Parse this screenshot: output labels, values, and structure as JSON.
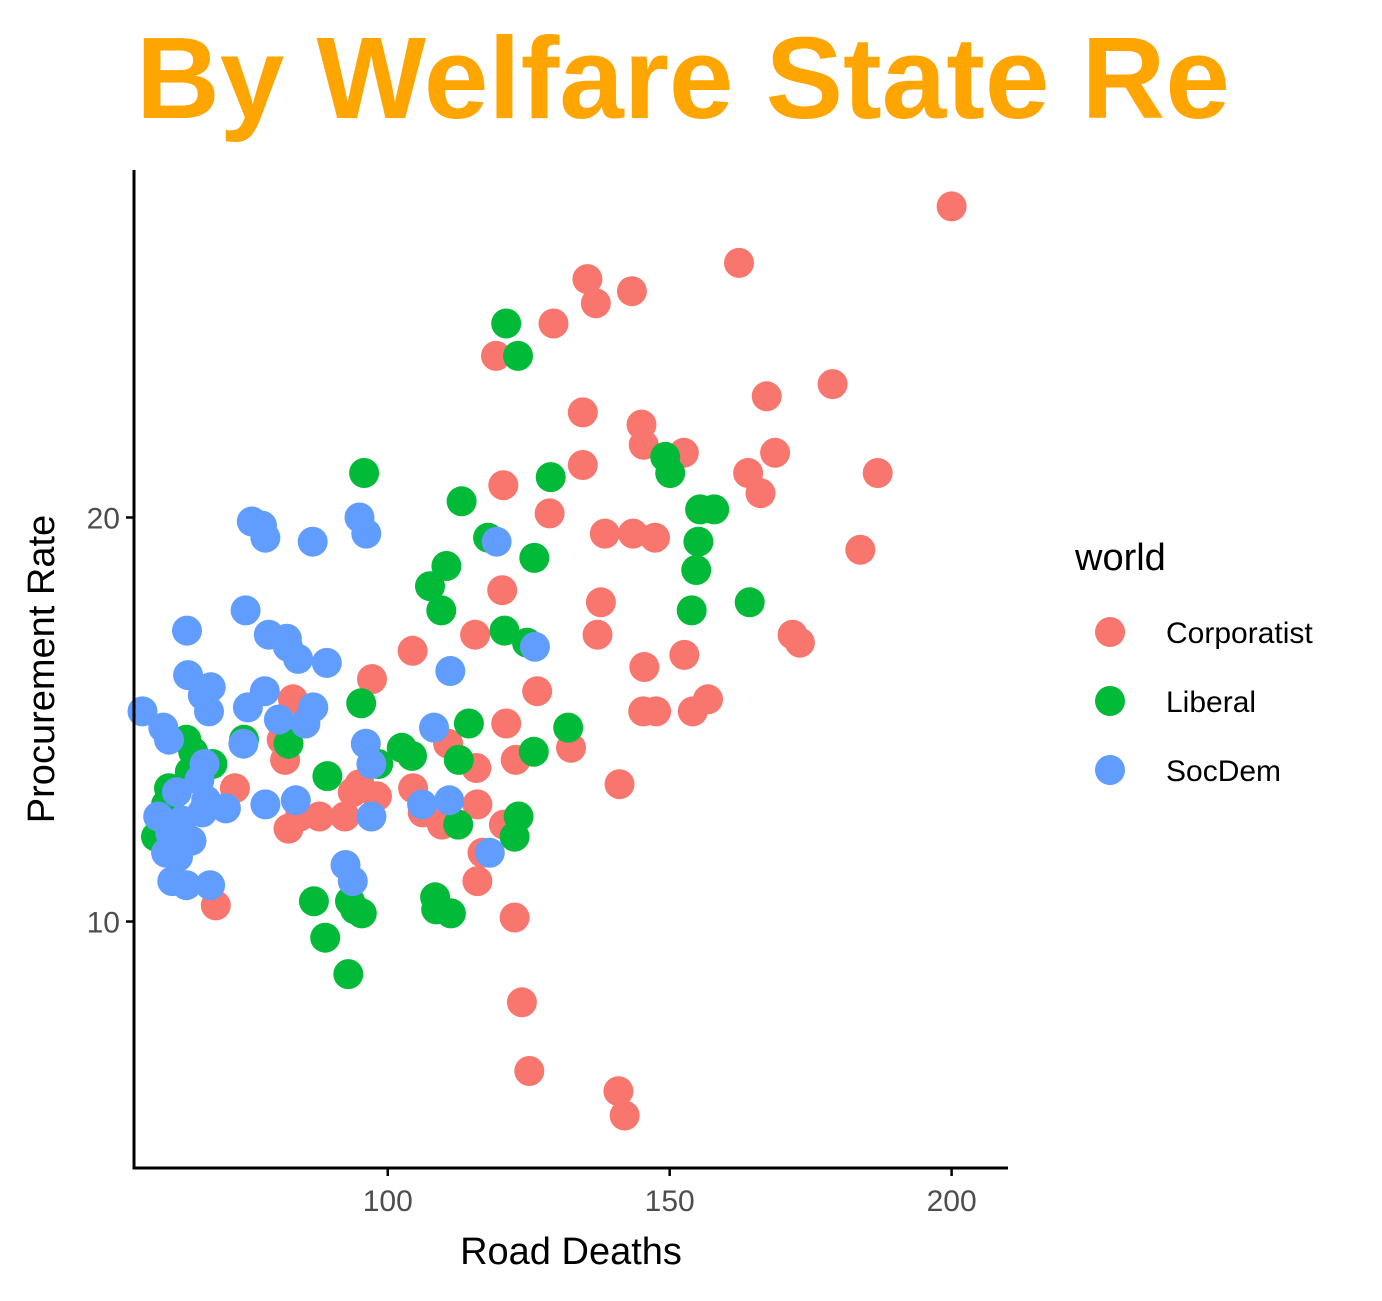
{
  "chart_data": {
    "type": "scatter",
    "title": "By Welfare State Re",
    "xlabel": "Road Deaths",
    "ylabel": "Procurement Rate",
    "xlim": [
      55,
      210
    ],
    "ylim": [
      3.9,
      28.6
    ],
    "x_ticks": [
      100,
      150,
      200
    ],
    "y_ticks": [
      10,
      20
    ],
    "grid": false,
    "legend": {
      "title": "world",
      "position": "right"
    },
    "colors": {
      "title": "#FFA500",
      "axis": "#000000",
      "tick_label": "#4D4D4D"
    },
    "series": [
      {
        "name": "Corporatist",
        "color": "#F8766D",
        "points": [
          [
            200.0,
            27.7
          ],
          [
            162.3,
            26.3
          ],
          [
            135.4,
            25.9
          ],
          [
            143.3,
            25.6
          ],
          [
            136.9,
            25.3
          ],
          [
            129.4,
            24.8
          ],
          [
            119.2,
            24.0
          ],
          [
            178.9,
            23.3
          ],
          [
            167.2,
            23.0
          ],
          [
            134.6,
            22.6
          ],
          [
            145.0,
            22.3
          ],
          [
            145.4,
            21.8
          ],
          [
            152.5,
            21.6
          ],
          [
            168.7,
            21.6
          ],
          [
            134.6,
            21.3
          ],
          [
            163.9,
            21.1
          ],
          [
            186.9,
            21.1
          ],
          [
            120.5,
            20.8
          ],
          [
            166.1,
            20.6
          ],
          [
            128.7,
            20.1
          ],
          [
            138.5,
            19.6
          ],
          [
            143.5,
            19.6
          ],
          [
            147.4,
            19.5
          ],
          [
            183.8,
            19.2
          ],
          [
            120.3,
            18.2
          ],
          [
            137.8,
            17.9
          ],
          [
            115.5,
            17.1
          ],
          [
            137.2,
            17.1
          ],
          [
            171.8,
            17.1
          ],
          [
            173.1,
            16.9
          ],
          [
            104.4,
            16.7
          ],
          [
            152.6,
            16.6
          ],
          [
            145.5,
            16.3
          ],
          [
            97.2,
            16.0
          ],
          [
            126.5,
            15.7
          ],
          [
            156.8,
            15.5
          ],
          [
            83.2,
            15.5
          ],
          [
            147.6,
            15.2
          ],
          [
            145.3,
            15.2
          ],
          [
            154.1,
            15.2
          ],
          [
            121.0,
            14.9
          ],
          [
            81.2,
            14.5
          ],
          [
            110.7,
            14.4
          ],
          [
            81.8,
            14.0
          ],
          [
            122.7,
            14.0
          ],
          [
            132.5,
            14.3
          ],
          [
            115.7,
            13.8
          ],
          [
            95.0,
            13.4
          ],
          [
            72.9,
            13.3
          ],
          [
            104.5,
            13.3
          ],
          [
            93.8,
            13.2
          ],
          [
            98.1,
            13.1
          ],
          [
            141.1,
            13.4
          ],
          [
            115.9,
            12.9
          ],
          [
            87.9,
            12.6
          ],
          [
            92.4,
            12.6
          ],
          [
            106.2,
            12.7
          ],
          [
            84.4,
            12.6
          ],
          [
            109.6,
            12.4
          ],
          [
            120.6,
            12.4
          ],
          [
            82.4,
            12.3
          ],
          [
            116.8,
            11.7
          ],
          [
            115.9,
            11.0
          ],
          [
            69.5,
            10.4
          ],
          [
            122.5,
            10.1
          ],
          [
            123.8,
            8.0
          ],
          [
            125.1,
            6.3
          ],
          [
            140.9,
            5.8
          ],
          [
            142.0,
            5.2
          ]
        ]
      },
      {
        "name": "Liberal",
        "color": "#00BA38",
        "points": [
          [
            121.0,
            24.8
          ],
          [
            123.1,
            24.0
          ],
          [
            95.8,
            21.1
          ],
          [
            113.1,
            20.4
          ],
          [
            128.9,
            21.0
          ],
          [
            149.2,
            21.5
          ],
          [
            150.1,
            21.1
          ],
          [
            155.4,
            20.2
          ],
          [
            157.9,
            20.2
          ],
          [
            117.8,
            19.5
          ],
          [
            155.1,
            19.4
          ],
          [
            126.0,
            19.0
          ],
          [
            110.4,
            18.8
          ],
          [
            154.7,
            18.7
          ],
          [
            107.5,
            18.3
          ],
          [
            109.5,
            17.7
          ],
          [
            153.9,
            17.7
          ],
          [
            164.2,
            17.9
          ],
          [
            120.7,
            17.2
          ],
          [
            124.7,
            16.9
          ],
          [
            95.3,
            15.4
          ],
          [
            64.3,
            14.5
          ],
          [
            74.5,
            14.5
          ],
          [
            82.4,
            14.4
          ],
          [
            114.4,
            14.9
          ],
          [
            132.0,
            14.8
          ],
          [
            65.5,
            14.2
          ],
          [
            68.9,
            13.9
          ],
          [
            102.5,
            14.3
          ],
          [
            104.3,
            14.1
          ],
          [
            112.6,
            14.0
          ],
          [
            125.9,
            14.2
          ],
          [
            89.3,
            13.6
          ],
          [
            98.3,
            13.9
          ],
          [
            64.9,
            13.7
          ],
          [
            61.2,
            13.3
          ],
          [
            60.7,
            12.9
          ],
          [
            123.2,
            12.6
          ],
          [
            112.5,
            12.4
          ],
          [
            61.6,
            12.3
          ],
          [
            58.9,
            12.1
          ],
          [
            122.5,
            12.1
          ],
          [
            86.9,
            10.5
          ],
          [
            93.3,
            10.5
          ],
          [
            108.4,
            10.6
          ],
          [
            95.4,
            10.2
          ],
          [
            108.6,
            10.3
          ],
          [
            94.2,
            10.3
          ],
          [
            111.2,
            10.2
          ],
          [
            88.9,
            9.6
          ],
          [
            93.0,
            8.7
          ]
        ]
      },
      {
        "name": "SocDem",
        "color": "#619CFF",
        "points": [
          [
            95.0,
            20.0
          ],
          [
            75.9,
            19.9
          ],
          [
            77.7,
            19.8
          ],
          [
            78.3,
            19.5
          ],
          [
            86.7,
            19.4
          ],
          [
            96.2,
            19.6
          ],
          [
            119.3,
            19.4
          ],
          [
            74.8,
            17.7
          ],
          [
            78.9,
            17.1
          ],
          [
            82.1,
            17.0
          ],
          [
            64.4,
            17.2
          ],
          [
            84.1,
            16.5
          ],
          [
            82.3,
            16.8
          ],
          [
            89.2,
            16.4
          ],
          [
            126.1,
            16.8
          ],
          [
            64.6,
            16.1
          ],
          [
            68.6,
            15.8
          ],
          [
            67.2,
            15.6
          ],
          [
            78.2,
            15.7
          ],
          [
            111.1,
            16.2
          ],
          [
            75.2,
            15.3
          ],
          [
            80.7,
            15.0
          ],
          [
            86.8,
            15.3
          ],
          [
            85.4,
            14.9
          ],
          [
            56.5,
            15.2
          ],
          [
            68.3,
            15.2
          ],
          [
            60.2,
            14.8
          ],
          [
            61.2,
            14.5
          ],
          [
            74.4,
            14.4
          ],
          [
            96.1,
            14.4
          ],
          [
            97.1,
            13.9
          ],
          [
            108.2,
            14.8
          ],
          [
            67.5,
            13.9
          ],
          [
            66.6,
            13.5
          ],
          [
            62.6,
            13.2
          ],
          [
            67.8,
            13.0
          ],
          [
            83.7,
            13.0
          ],
          [
            110.9,
            13.0
          ],
          [
            78.3,
            12.9
          ],
          [
            106.1,
            12.9
          ],
          [
            71.3,
            12.8
          ],
          [
            63.5,
            12.5
          ],
          [
            67.1,
            12.7
          ],
          [
            59.3,
            12.6
          ],
          [
            61.4,
            12.2
          ],
          [
            65.2,
            12.0
          ],
          [
            97.1,
            12.6
          ],
          [
            60.7,
            11.7
          ],
          [
            62.8,
            11.6
          ],
          [
            118.1,
            11.7
          ],
          [
            92.5,
            11.4
          ],
          [
            93.8,
            11.0
          ],
          [
            61.8,
            11.0
          ],
          [
            64.3,
            10.9
          ],
          [
            68.5,
            10.9
          ]
        ]
      }
    ]
  }
}
